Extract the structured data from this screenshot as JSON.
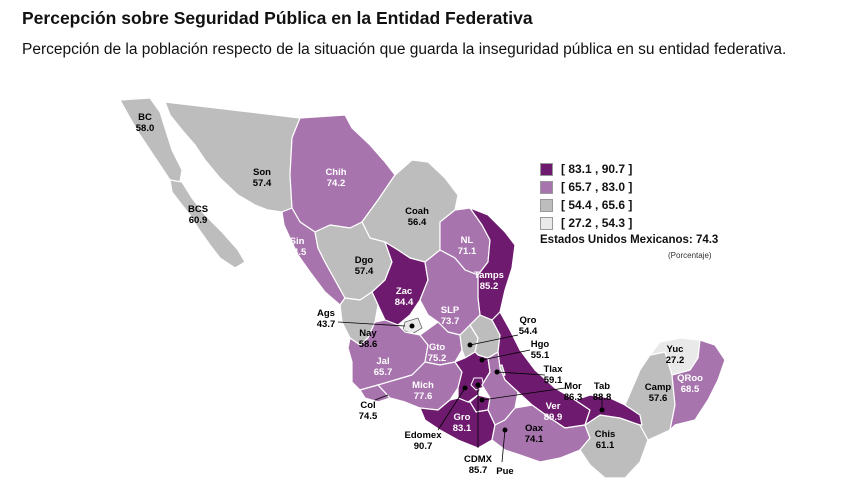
{
  "header": {
    "title": "Percepción sobre Seguridad Pública en la Entidad Federativa",
    "subtitle": "Percepción de la población respecto de la situación que guarda la inseguridad pública en su entidad federativa."
  },
  "legend": {
    "items": [
      {
        "label": "[ 83.1 , 90.7 ]",
        "color": "#6e1a6e"
      },
      {
        "label": "[ 65.7 , 83.0 ]",
        "color": "#a874ae"
      },
      {
        "label": "[ 54.4 , 65.6 ]",
        "color": "#bdbdbd"
      },
      {
        "label": "[ 27.2 , 54.3 ]",
        "color": "#e9e9e9"
      }
    ]
  },
  "national": {
    "label": "Estados Unidos Mexicanos:",
    "value": "74.3",
    "unit": "(Porcentaje)"
  },
  "states": [
    {
      "abbr": "BC",
      "value": "58.0"
    },
    {
      "abbr": "Son",
      "value": "57.4"
    },
    {
      "abbr": "Chih",
      "value": "74.2"
    },
    {
      "abbr": "Coah",
      "value": "56.4"
    },
    {
      "abbr": "BCS",
      "value": "60.9"
    },
    {
      "abbr": "NL",
      "value": "71.1"
    },
    {
      "abbr": "Sin",
      "value": "74.5"
    },
    {
      "abbr": "Dgo",
      "value": "57.4"
    },
    {
      "abbr": "Tamps",
      "value": "85.2"
    },
    {
      "abbr": "Zac",
      "value": "84.4"
    },
    {
      "abbr": "SLP",
      "value": "73.7"
    },
    {
      "abbr": "Ags",
      "value": "43.7"
    },
    {
      "abbr": "Nay",
      "value": "58.6"
    },
    {
      "abbr": "Qro",
      "value": "54.4"
    },
    {
      "abbr": "Gto",
      "value": "75.2"
    },
    {
      "abbr": "Hgo",
      "value": "55.1"
    },
    {
      "abbr": "Jal",
      "value": "65.7"
    },
    {
      "abbr": "Tlax",
      "value": "59.1"
    },
    {
      "abbr": "Yuc",
      "value": "27.2"
    },
    {
      "abbr": "Mich",
      "value": "77.6"
    },
    {
      "abbr": "Mor",
      "value": "86.3"
    },
    {
      "abbr": "Tab",
      "value": "88.8"
    },
    {
      "abbr": "Camp",
      "value": "57.6"
    },
    {
      "abbr": "QRoo",
      "value": "68.5"
    },
    {
      "abbr": "Col",
      "value": "74.5"
    },
    {
      "abbr": "Ver",
      "value": "89.9"
    },
    {
      "abbr": "Gro",
      "value": "83.1"
    },
    {
      "abbr": "Oax",
      "value": "74.1"
    },
    {
      "abbr": "Edomex",
      "value": "90.7"
    },
    {
      "abbr": "Chis",
      "value": "61.1"
    },
    {
      "abbr": "CDMX",
      "value": "85.7"
    },
    {
      "abbr": "Pue",
      "value": ""
    }
  ]
}
